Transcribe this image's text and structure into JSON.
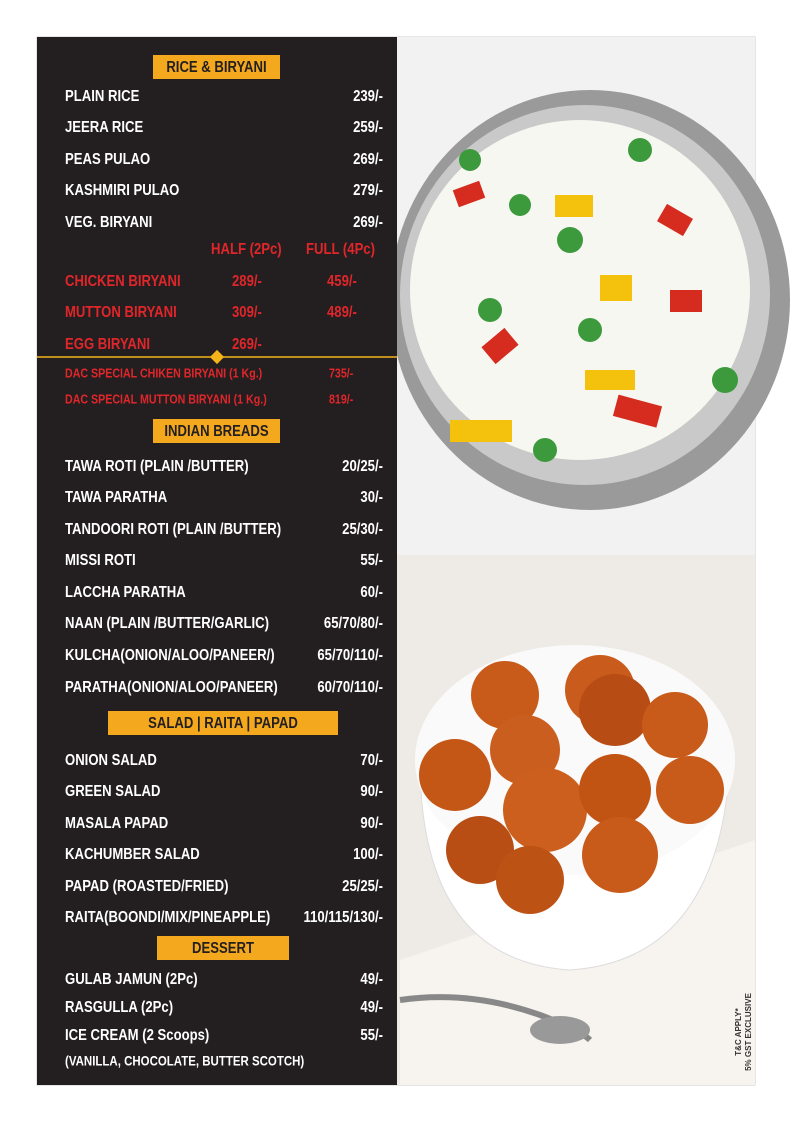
{
  "rice": {
    "title": "RICE & BIRYANI",
    "items": [
      [
        "PLAIN RICE",
        "239/-"
      ],
      [
        "JEERA RICE",
        "259/-"
      ],
      [
        "PEAS PULAO",
        "269/-"
      ],
      [
        "KASHMIRI PULAO",
        "279/-"
      ],
      [
        "VEG. BIRYANI",
        "269/-"
      ]
    ],
    "headers": [
      "HALF (2Pc)",
      "FULL (4Pc)"
    ],
    "nonveg": [
      [
        "CHICKEN BIRYANI",
        "289/-",
        "459/-"
      ],
      [
        "MUTTON BIRYANI",
        "309/-",
        "489/-"
      ],
      [
        "EGG BIRYANI",
        "269/-"
      ]
    ],
    "specials": [
      [
        "DAC SPECIAL CHIKEN BIRYANI (1 Kg.)",
        "735/-"
      ],
      [
        "DAC SPECIAL MUTTON BIRYANI (1 Kg.)",
        "819/-"
      ]
    ]
  },
  "breads": {
    "title": "INDIAN BREADS",
    "items": [
      [
        "TAWA ROTI (PLAIN /BUTTER)",
        "20/25/-"
      ],
      [
        "TAWA PARATHA",
        "30/-"
      ],
      [
        "TANDOORI ROTI (PLAIN /BUTTER)",
        "25/30/-"
      ],
      [
        "MISSI ROTI",
        "55/-"
      ],
      [
        "LACCHA PARATHA",
        "60/-"
      ],
      [
        "NAAN (PLAIN /BUTTER/GARLIC)",
        "65/70/80/-"
      ],
      [
        "KULCHA(ONION/ALOO/PANEER/)",
        "65/70/110/-"
      ],
      [
        "PARATHA(ONION/ALOO/PANEER)",
        "60/70/110/-"
      ]
    ]
  },
  "salad": {
    "title": "SALAD | RAITA | PAPAD",
    "items": [
      [
        "ONION SALAD",
        "70/-"
      ],
      [
        "GREEN SALAD",
        "90/-"
      ],
      [
        "MASALA PAPAD",
        "90/-"
      ],
      [
        "KACHUMBER SALAD",
        "100/-"
      ],
      [
        "PAPAD (ROASTED/FRIED)",
        "25/25/-"
      ],
      [
        "RAITA(BOONDI/MIX/PINEAPPLE)",
        "110/115/130/-"
      ]
    ]
  },
  "dessert": {
    "title": "DESSERT",
    "items": [
      [
        "GULAB JAMUN (2Pc)",
        "49/-"
      ],
      [
        "RASGULLA (2Pc)",
        "49/-"
      ],
      [
        "ICE CREAM (2 Scoops)",
        "55/-"
      ]
    ],
    "note": "(VANILLA, CHOCOLATE, BUTTER SCOTCH)"
  },
  "notes": [
    "T&C APPLY*",
    "5% GST EXCLUSIVE"
  ]
}
